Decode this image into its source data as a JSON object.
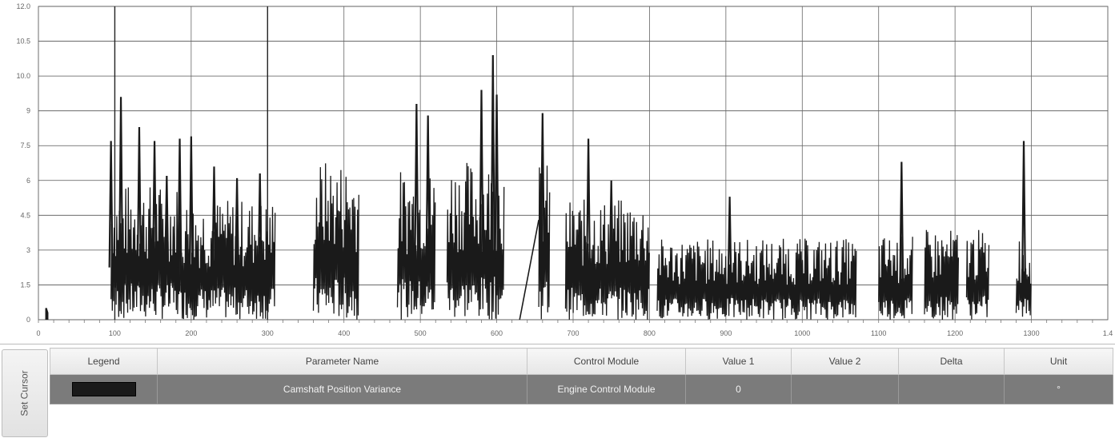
{
  "chart_data": {
    "type": "line",
    "y_ticks": [
      "12.0",
      "10.5",
      "10.0",
      "9",
      "7.5",
      "6",
      "4.5",
      "3",
      "1.5",
      "0"
    ],
    "x_ticks": [
      "0",
      "100",
      "200",
      "300",
      "400",
      "500",
      "600",
      "700",
      "800",
      "900",
      "1000",
      "1100",
      "1200",
      "1300",
      "1.4"
    ],
    "ylim": [
      0,
      13.5
    ],
    "xlim": [
      0,
      1.4
    ],
    "grid": true,
    "series": [
      {
        "color": "#1a1a1a",
        "segments": [
          {
            "x": [
              0.01,
              0.012
            ],
            "y": [
              0.5,
              0.3
            ]
          },
          {
            "x": [
              0.095,
              0.185
            ],
            "peak": 9.6,
            "level": 4.5,
            "spikes": [
              [
                0.095,
                7.7
              ],
              [
                0.108,
                9.6
              ],
              [
                0.132,
                8.3
              ],
              [
                0.152,
                7.7
              ],
              [
                0.168,
                6.2
              ],
              [
                0.185,
                7.8
              ]
            ]
          },
          {
            "x": [
              0.185,
              0.31
            ],
            "peak": 7.9,
            "level": 4.0,
            "spikes": [
              [
                0.2,
                7.9
              ],
              [
                0.23,
                6.6
              ],
              [
                0.26,
                6.1
              ],
              [
                0.29,
                6.3
              ]
            ]
          },
          {
            "x": [
              0.36,
              0.42
            ],
            "peak": 6.0,
            "level": 5.3
          },
          {
            "x": [
              0.47,
              0.52
            ],
            "peak": 9.3,
            "level": 5.0,
            "spikes": [
              [
                0.495,
                9.3
              ],
              [
                0.51,
                8.8
              ]
            ]
          },
          {
            "x": [
              0.535,
              0.61
            ],
            "peak": 11.4,
            "level": 5.3,
            "spikes": [
              [
                0.58,
                9.9
              ],
              [
                0.595,
                11.4
              ],
              [
                0.6,
                9.7
              ]
            ]
          },
          {
            "x": [
              0.655,
              0.67
            ],
            "peak": 8.9,
            "level": 5.2,
            "spikes": [
              [
                0.66,
                8.9
              ]
            ]
          },
          {
            "x": [
              0.69,
              0.8
            ],
            "peak": 7.8,
            "level": 4.0,
            "spikes": [
              [
                0.72,
                7.8
              ],
              [
                0.75,
                6.0
              ]
            ]
          },
          {
            "x": [
              0.81,
              1.07
            ],
            "peak": 5.4,
            "level": 2.7,
            "spikes": [
              [
                0.905,
                5.3
              ]
            ]
          },
          {
            "x": [
              1.1,
              1.145
            ],
            "peak": 6.8,
            "level": 2.8,
            "spikes": [
              [
                1.13,
                6.8
              ]
            ]
          },
          {
            "x": [
              1.16,
              1.205
            ],
            "peak": 4.5,
            "level": 3.0
          },
          {
            "x": [
              1.215,
              1.245
            ],
            "peak": 4.7,
            "level": 3.0
          },
          {
            "x": [
              1.28,
              1.3
            ],
            "peak": 7.7,
            "level": 2.8,
            "spikes": [
              [
                1.29,
                7.7
              ]
            ]
          }
        ]
      }
    ]
  },
  "table": {
    "headers": [
      "Legend",
      "Parameter Name",
      "Control Module",
      "Value 1",
      "Value 2",
      "Delta",
      "Unit"
    ],
    "row": {
      "legend_color": "#1a1a1a",
      "parameter": "Camshaft Position Variance",
      "module": "Engine Control Module",
      "value1": "0",
      "value2": "",
      "delta": "",
      "unit": "°"
    }
  },
  "side_tab": "Set Cursor"
}
